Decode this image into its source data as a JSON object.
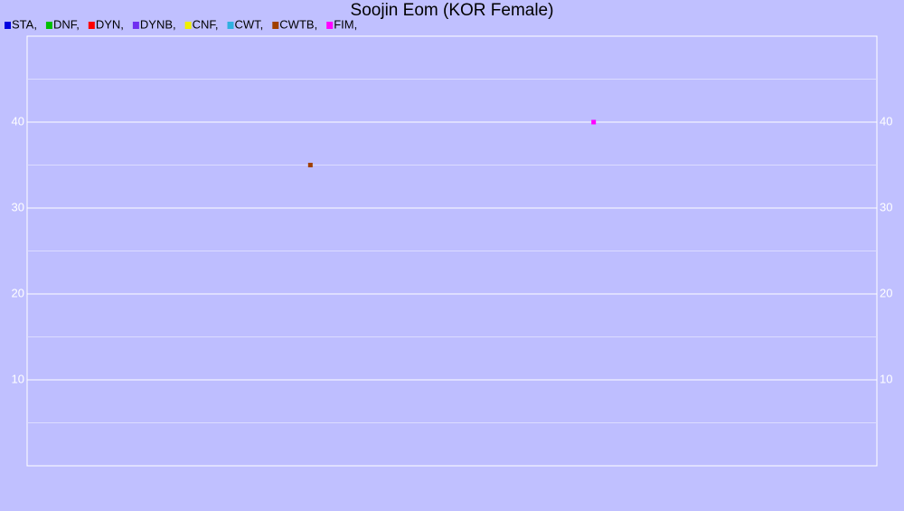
{
  "chart_data": {
    "type": "scatter",
    "title": "Soojin Eom (KOR Female)",
    "xlim": [
      0,
      6
    ],
    "ylim": [
      0,
      50
    ],
    "yticks": [
      10,
      20,
      30,
      40
    ],
    "minor_yticks": [
      5,
      15,
      25,
      35,
      45
    ],
    "grid": true,
    "series": [
      {
        "name": "STA,",
        "color": "#0000e0",
        "x": [],
        "values": []
      },
      {
        "name": "DNF,",
        "color": "#00c000",
        "x": [],
        "values": []
      },
      {
        "name": "DYN,",
        "color": "#ff0000",
        "x": [],
        "values": []
      },
      {
        "name": "DYNB,",
        "color": "#7030f0",
        "x": [],
        "values": []
      },
      {
        "name": "CNF,",
        "color": "#f0f000",
        "x": [],
        "values": []
      },
      {
        "name": "CWT,",
        "color": "#30b0e0",
        "x": [],
        "values": []
      },
      {
        "name": "CWTB,",
        "color": "#a04000",
        "x": [
          2
        ],
        "values": [
          35
        ]
      },
      {
        "name": "FIM,",
        "color": "#ff00ff",
        "x": [
          4
        ],
        "values": [
          40
        ]
      }
    ]
  }
}
